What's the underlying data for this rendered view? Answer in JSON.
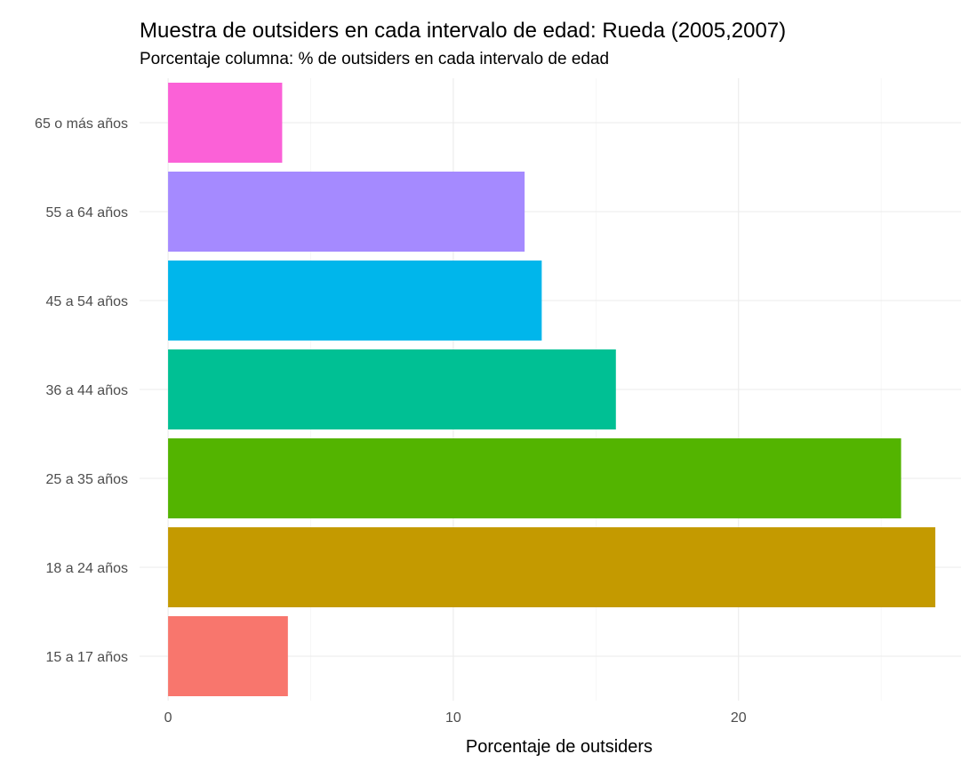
{
  "chart_data": {
    "type": "bar",
    "orientation": "horizontal",
    "title": "Muestra de outsiders en cada intervalo de edad: Rueda (2005,2007)",
    "subtitle": "Porcentaje columna: % de outsiders en cada intervalo de edad",
    "xlabel": "Porcentaje de outsiders",
    "ylabel": "",
    "categories": [
      "15 a 17 años",
      "18 a 24 años",
      "25 a 35 años",
      "36 a 44 años",
      "45 a 54 años",
      "55 a 64 años",
      "65 o más años"
    ],
    "values": [
      4.2,
      26.9,
      25.7,
      15.7,
      13.1,
      12.5,
      4.0
    ],
    "colors": [
      "#F8766D",
      "#C49A00",
      "#53B400",
      "#00C094",
      "#00B6EB",
      "#A58AFF",
      "#FB61D7"
    ],
    "xlim": [
      -1.0,
      27.8
    ],
    "xticks": [
      0,
      10,
      20
    ],
    "xtick_labels": [
      "0",
      "10",
      "20"
    ],
    "grid": true,
    "legend": "none"
  }
}
